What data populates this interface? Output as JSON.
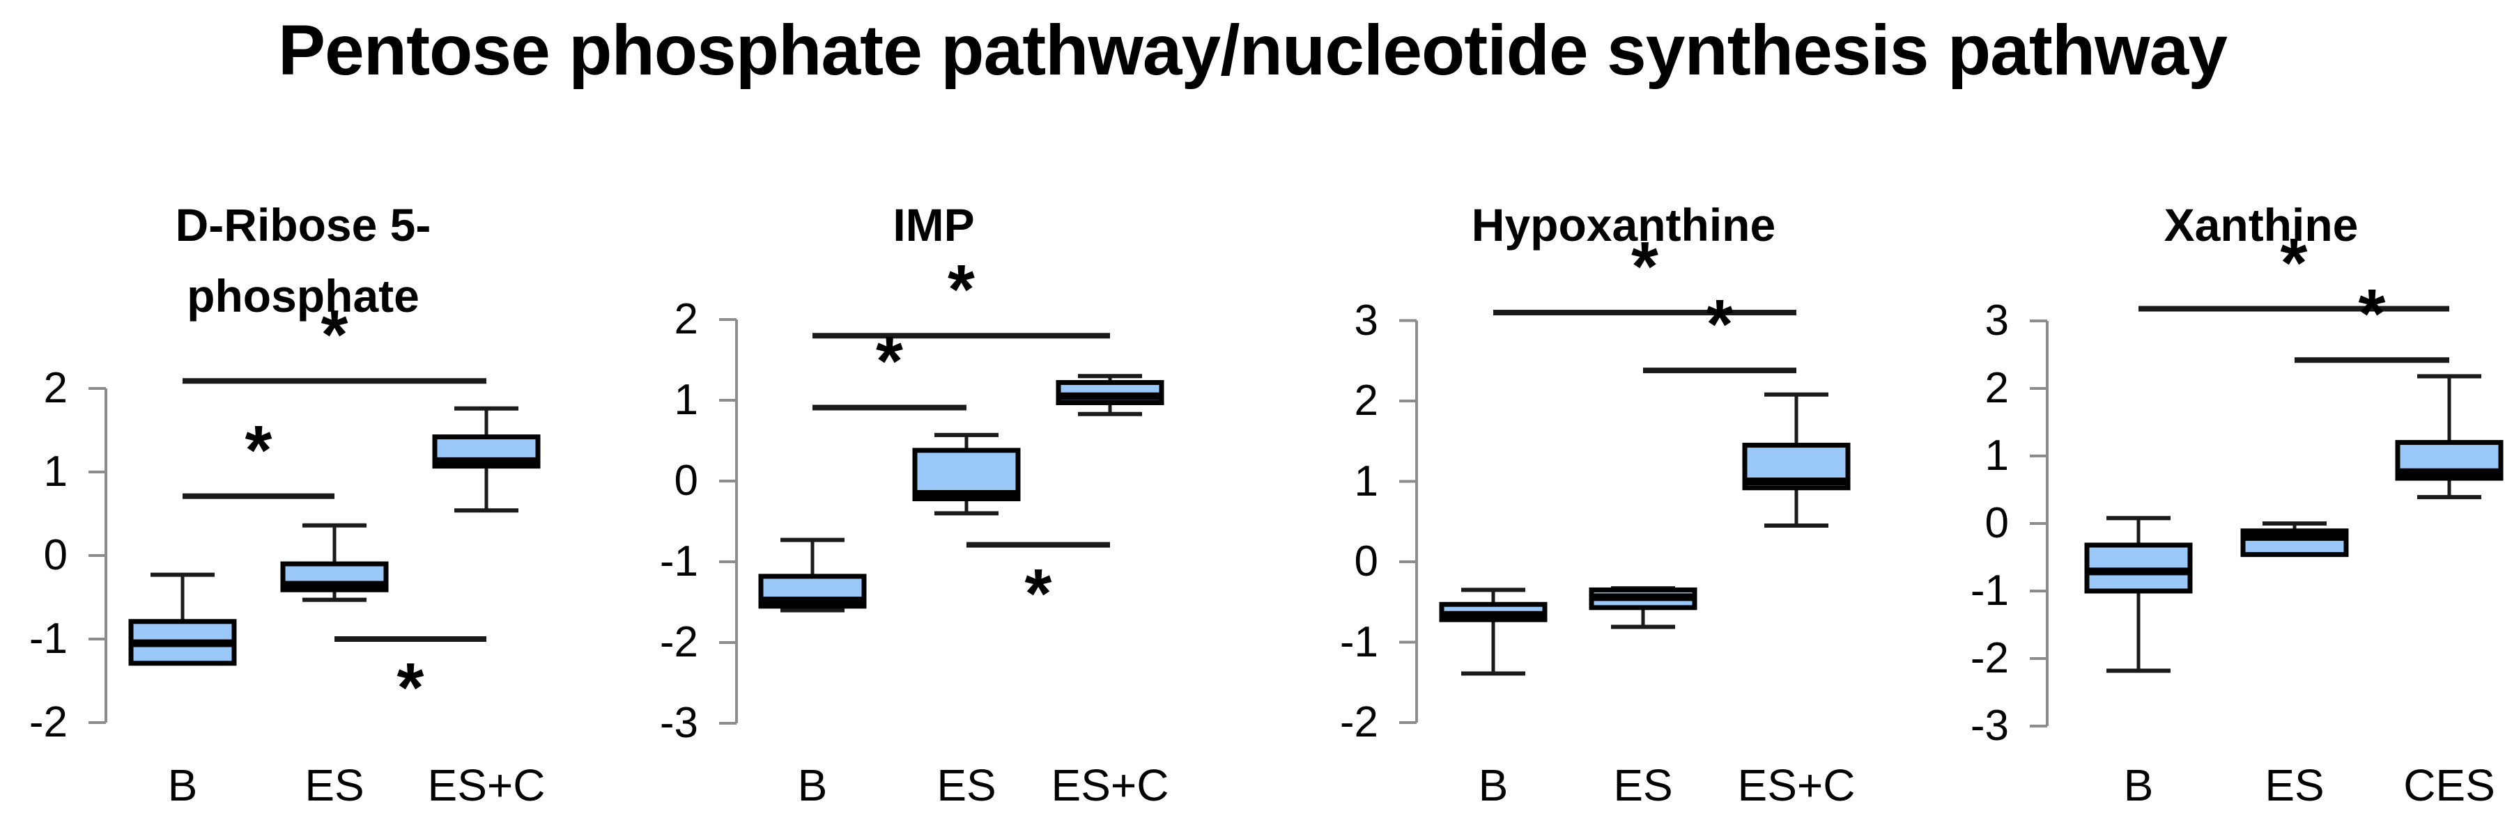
{
  "title": "Pentose phosphate pathway/nucleotide synthesis pathway",
  "significance_symbol": "*",
  "colors": {
    "background": "#FFFFFF",
    "box_fill": "#9AC8F8",
    "box_border": "#000000",
    "median": "#000000",
    "whisker": "#1A1A1A",
    "axis": "#8C8C8C",
    "sig_bar": "#1A1A1A",
    "text": "#000000"
  },
  "chart_data": [
    {
      "type": "boxplot",
      "title_lines": [
        "D-Ribose 5-",
        "phosphate"
      ],
      "categories": [
        "B",
        "ES",
        "ES+C"
      ],
      "ylim": [
        -2,
        2
      ],
      "yticks": [
        2,
        1,
        0,
        -1,
        -2
      ],
      "grid": false,
      "series": [
        {
          "category": "B",
          "min": -1.29,
          "q1": -1.29,
          "median": -1.05,
          "q3": -0.79,
          "max": -0.23
        },
        {
          "category": "ES",
          "min": -0.53,
          "q1": -0.41,
          "median": -0.35,
          "q3": -0.1,
          "max": 0.36
        },
        {
          "category": "ES+C",
          "min": 0.54,
          "q1": 1.07,
          "median": 1.13,
          "q3": 1.42,
          "max": 1.76
        }
      ],
      "significance": [
        {
          "between": [
            "B",
            "ES+C"
          ],
          "y": 2.09,
          "symbol": "*",
          "symbol_position": "above"
        },
        {
          "between": [
            "B",
            "ES"
          ],
          "y": 0.71,
          "symbol": "*",
          "symbol_position": "above"
        },
        {
          "between": [
            "ES",
            "ES+C"
          ],
          "y": -1.0,
          "symbol": "*",
          "symbol_position": "below"
        }
      ]
    },
    {
      "type": "boxplot",
      "title_lines": [
        "IMP"
      ],
      "categories": [
        "B",
        "ES",
        "ES+C"
      ],
      "ylim": [
        -3,
        2
      ],
      "yticks": [
        2,
        1,
        0,
        -1,
        -2,
        -3
      ],
      "grid": false,
      "series": [
        {
          "category": "B",
          "min": -1.6,
          "q1": -1.55,
          "median": -1.48,
          "q3": -1.18,
          "max": -0.73
        },
        {
          "category": "ES",
          "min": -0.4,
          "q1": -0.22,
          "median": -0.16,
          "q3": 0.38,
          "max": 0.57
        },
        {
          "category": "ES+C",
          "min": 0.83,
          "q1": 0.97,
          "median": 1.05,
          "q3": 1.22,
          "max": 1.3
        }
      ],
      "significance": [
        {
          "between": [
            "B",
            "ES+C"
          ],
          "y": 1.8,
          "symbol": "*",
          "symbol_position": "above"
        },
        {
          "between": [
            "B",
            "ES"
          ],
          "y": 0.91,
          "symbol": "*",
          "symbol_position": "above"
        },
        {
          "between": [
            "ES",
            "ES+C"
          ],
          "y": -0.79,
          "symbol": "*",
          "symbol_position": "below"
        }
      ]
    },
    {
      "type": "boxplot",
      "title_lines": [
        "Hypoxanthine"
      ],
      "categories": [
        "B",
        "ES",
        "ES+C"
      ],
      "ylim": [
        -2,
        3
      ],
      "yticks": [
        3,
        2,
        1,
        0,
        -1,
        -2
      ],
      "grid": false,
      "series": [
        {
          "category": "B",
          "min": -1.39,
          "q1": -0.72,
          "median": -0.66,
          "q3": -0.53,
          "max": -0.35
        },
        {
          "category": "ES",
          "min": -0.81,
          "q1": -0.57,
          "median": -0.44,
          "q3": -0.35,
          "max": -0.33
        },
        {
          "category": "ES+C",
          "min": 0.45,
          "q1": 0.92,
          "median": 1.0,
          "q3": 1.45,
          "max": 2.08
        }
      ],
      "significance": [
        {
          "between": [
            "B",
            "ES+C"
          ],
          "y": 3.1,
          "symbol": "*",
          "symbol_position": "above"
        },
        {
          "between": [
            "ES",
            "ES+C"
          ],
          "y": 2.38,
          "symbol": "*",
          "symbol_position": "above"
        }
      ]
    },
    {
      "type": "boxplot",
      "title_lines": [
        "Xanthine"
      ],
      "categories": [
        "B",
        "ES",
        "CES"
      ],
      "ylim": [
        -3,
        3
      ],
      "yticks": [
        3,
        2,
        1,
        0,
        -1,
        -2,
        -3
      ],
      "grid": false,
      "series": [
        {
          "category": "B",
          "min": -2.18,
          "q1": -1.0,
          "median": -0.71,
          "q3": -0.32,
          "max": 0.08
        },
        {
          "category": "ES",
          "min": -0.46,
          "q1": -0.46,
          "median": -0.2,
          "q3": -0.11,
          "max": 0.0
        },
        {
          "category": "CES",
          "min": 0.39,
          "q1": 0.67,
          "median": 0.76,
          "q3": 1.2,
          "max": 2.18
        }
      ],
      "significance": [
        {
          "between": [
            "B",
            "CES"
          ],
          "y": 3.18,
          "symbol": "*",
          "symbol_position": "above"
        },
        {
          "between": [
            "ES",
            "CES"
          ],
          "y": 2.42,
          "symbol": "*",
          "symbol_position": "above"
        }
      ]
    }
  ]
}
